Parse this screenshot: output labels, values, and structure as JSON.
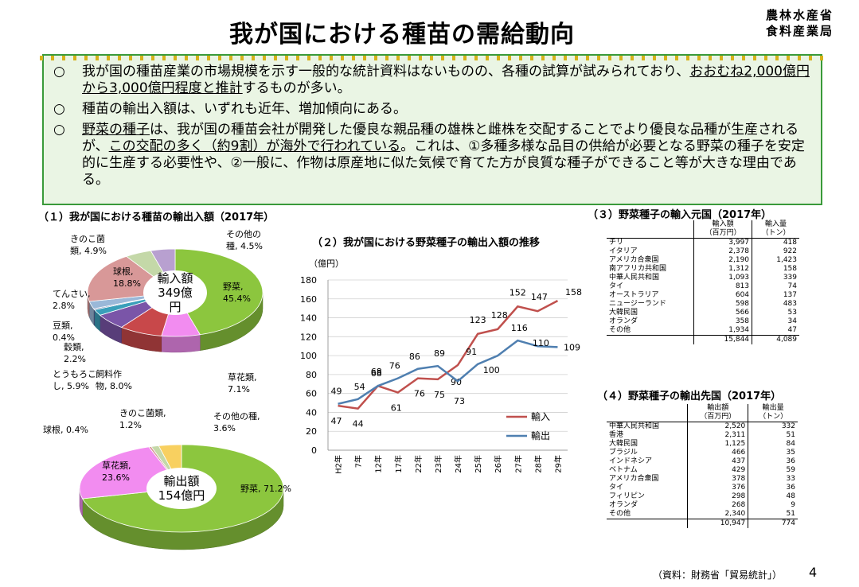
{
  "title": "我が国における種苗の需給動向",
  "ministry": {
    "line1": "農林水産省",
    "line2": "食料産業局"
  },
  "summary": {
    "marker": "○",
    "p1": {
      "pre": "我が国の種苗産業の市場規模を示す一般的な統計資料はないものの、各種の試算が試みられており、",
      "ul": "おおむね2,000億円から3,000億円程度と推計",
      "post": "するものが多い。"
    },
    "p2": "種苗の輸出入額は、いずれも近年、増加傾向にある。",
    "p3": {
      "ul": "野菜の種子",
      "mid1": "は、我が国の種苗会社が開発した優良な親品種の雄株と雌株を交配することでより優良な品種が生産されるが、",
      "ul2": "この交配の多く（約9割）が海外で行われている",
      "post": "。これは、①多種多様な品目の供給が必要となる野菜の種子を安定的に生産する必要性や、②一般に、作物は原産地に似た気候で育てた方が良質な種子ができること等が大きな理由である。"
    }
  },
  "sections": {
    "s1": "（１）我が国における種苗の輸出入額（2017年）",
    "s2": "（２）我が国における野菜種子の輸出入額の推移",
    "s3": "（３）野菜種子の輸入元国（2017年）",
    "s4": "（４）野菜種子の輸出先国（2017年）"
  },
  "chart_data": [
    {
      "type": "pie",
      "title": "（１）我が国における種苗の輸出入額（2017年） 輸入",
      "center_label": [
        "輸入額",
        "349億",
        "円"
      ],
      "slices": [
        {
          "name": "野菜",
          "value": 45.4,
          "label": [
            "野菜,",
            "45.4%"
          ],
          "color": "#8cc63e"
        },
        {
          "name": "草花類",
          "value": 7.1,
          "label": [
            "草花類,",
            "7.1%"
          ],
          "color": "#f28cf0"
        },
        {
          "name": "飼料作物",
          "value": 8.0,
          "label": [
            "飼料作",
            "物, 8.0%"
          ],
          "color": "#c8484a"
        },
        {
          "name": "とうもろこし",
          "value": 5.9,
          "label": [
            "とうもろこ",
            "し, 5.9%"
          ],
          "color": "#7a55a8"
        },
        {
          "name": "穀類",
          "value": 2.2,
          "label": [
            "穀類,",
            "2.2%"
          ],
          "color": "#3a9fba"
        },
        {
          "name": "豆類",
          "value": 0.4,
          "label": [
            "豆類,",
            "0.4%"
          ],
          "color": "#5a6ea8"
        },
        {
          "name": "てんさい",
          "value": 2.8,
          "label": [
            "てんさい,",
            "2.8%"
          ],
          "color": "#9ab8d8"
        },
        {
          "name": "球根",
          "value": 18.8,
          "label": [
            "球根,",
            "18.8%"
          ],
          "color": "#d89898"
        },
        {
          "name": "きのこ菌類",
          "value": 4.9,
          "label": [
            "きのこ菌",
            "類, 4.9%"
          ],
          "color": "#c4d8a8"
        },
        {
          "name": "その他の種",
          "value": 4.5,
          "label": [
            "その他の",
            "種, 4.5%"
          ],
          "color": "#b8a0d0"
        }
      ]
    },
    {
      "type": "pie",
      "title": "（１）我が国における種苗の輸出入額（2017年） 輸出",
      "center_label": [
        "輸出額",
        "154億円"
      ],
      "slices": [
        {
          "name": "野菜",
          "value": 71.2,
          "label": [
            "野菜, 71.2%"
          ],
          "color": "#8cc63e"
        },
        {
          "name": "草花類",
          "value": 23.6,
          "label": [
            "草花類,",
            "23.6%"
          ],
          "color": "#f28cf0"
        },
        {
          "name": "球根",
          "value": 0.4,
          "label": [
            "球根, 0.4%"
          ],
          "color": "#d89898"
        },
        {
          "name": "きのこ菌類",
          "value": 1.2,
          "label": [
            "きのこ菌類,",
            "1.2%"
          ],
          "color": "#c4d8a8"
        },
        {
          "name": "その他の種",
          "value": 3.6,
          "label": [
            "その他の種,",
            "3.6%"
          ],
          "color": "#f8d060"
        }
      ]
    },
    {
      "type": "line",
      "title": "（２）我が国における野菜種子の輸出入額の推移",
      "ylabel": "（億円）",
      "ylim": [
        0,
        180
      ],
      "yticks": [
        0,
        20,
        40,
        60,
        80,
        100,
        120,
        140,
        160,
        180
      ],
      "categories": [
        "H2年",
        "7年",
        "12年",
        "17年",
        "22年",
        "23年",
        "24年",
        "25年",
        "26年",
        "27年",
        "28年",
        "29年"
      ],
      "series": [
        {
          "name": "輸入",
          "color": "#c0504d",
          "values": [
            47,
            44,
            68,
            61,
            76,
            75,
            90,
            123,
            128,
            152,
            147,
            158
          ]
        },
        {
          "name": "輸出",
          "color": "#4f7fb0",
          "values": [
            49,
            54,
            68,
            76,
            86,
            89,
            73,
            91,
            100,
            116,
            110,
            109
          ]
        }
      ]
    }
  ],
  "import_table": {
    "h1": "輸入額",
    "h1u": "（百万円）",
    "h2": "輸入量",
    "h2u": "（トン）",
    "rows": [
      {
        "c": "チリ",
        "a": "3,997",
        "b": "418"
      },
      {
        "c": "イタリア",
        "a": "2,378",
        "b": "922"
      },
      {
        "c": "アメリカ合衆国",
        "a": "2,190",
        "b": "1,423"
      },
      {
        "c": "南アフリカ共和国",
        "a": "1,312",
        "b": "158"
      },
      {
        "c": "中華人民共和国",
        "a": "1,093",
        "b": "339"
      },
      {
        "c": "タイ",
        "a": "813",
        "b": "74"
      },
      {
        "c": "オーストラリア",
        "a": "604",
        "b": "137"
      },
      {
        "c": "ニュージーランド",
        "a": "598",
        "b": "483"
      },
      {
        "c": "大韓民国",
        "a": "566",
        "b": "53"
      },
      {
        "c": "オランダ",
        "a": "358",
        "b": "34"
      },
      {
        "c": "その他",
        "a": "1,934",
        "b": "47"
      }
    ],
    "total": {
      "a": "15,844",
      "b": "4,089"
    }
  },
  "export_table": {
    "h1": "輸出額",
    "h1u": "（百万円）",
    "h2": "輸出量",
    "h2u": "（トン）",
    "rows": [
      {
        "c": "中華人民共和国",
        "a": "2,520",
        "b": "332"
      },
      {
        "c": "香港",
        "a": "2,311",
        "b": "51"
      },
      {
        "c": "大韓民国",
        "a": "1,125",
        "b": "84"
      },
      {
        "c": "ブラジル",
        "a": "466",
        "b": "35"
      },
      {
        "c": "インドネシア",
        "a": "437",
        "b": "36"
      },
      {
        "c": "ベトナム",
        "a": "429",
        "b": "59"
      },
      {
        "c": "アメリカ合衆国",
        "a": "378",
        "b": "33"
      },
      {
        "c": "タイ",
        "a": "376",
        "b": "36"
      },
      {
        "c": "フィリピン",
        "a": "298",
        "b": "48"
      },
      {
        "c": "オランダ",
        "a": "268",
        "b": "9"
      },
      {
        "c": "その他",
        "a": "2,340",
        "b": "51"
      }
    ],
    "total": {
      "a": "10,947",
      "b": "774"
    }
  },
  "source": "（資料：財務省「貿易統計」）",
  "page_number": "4"
}
